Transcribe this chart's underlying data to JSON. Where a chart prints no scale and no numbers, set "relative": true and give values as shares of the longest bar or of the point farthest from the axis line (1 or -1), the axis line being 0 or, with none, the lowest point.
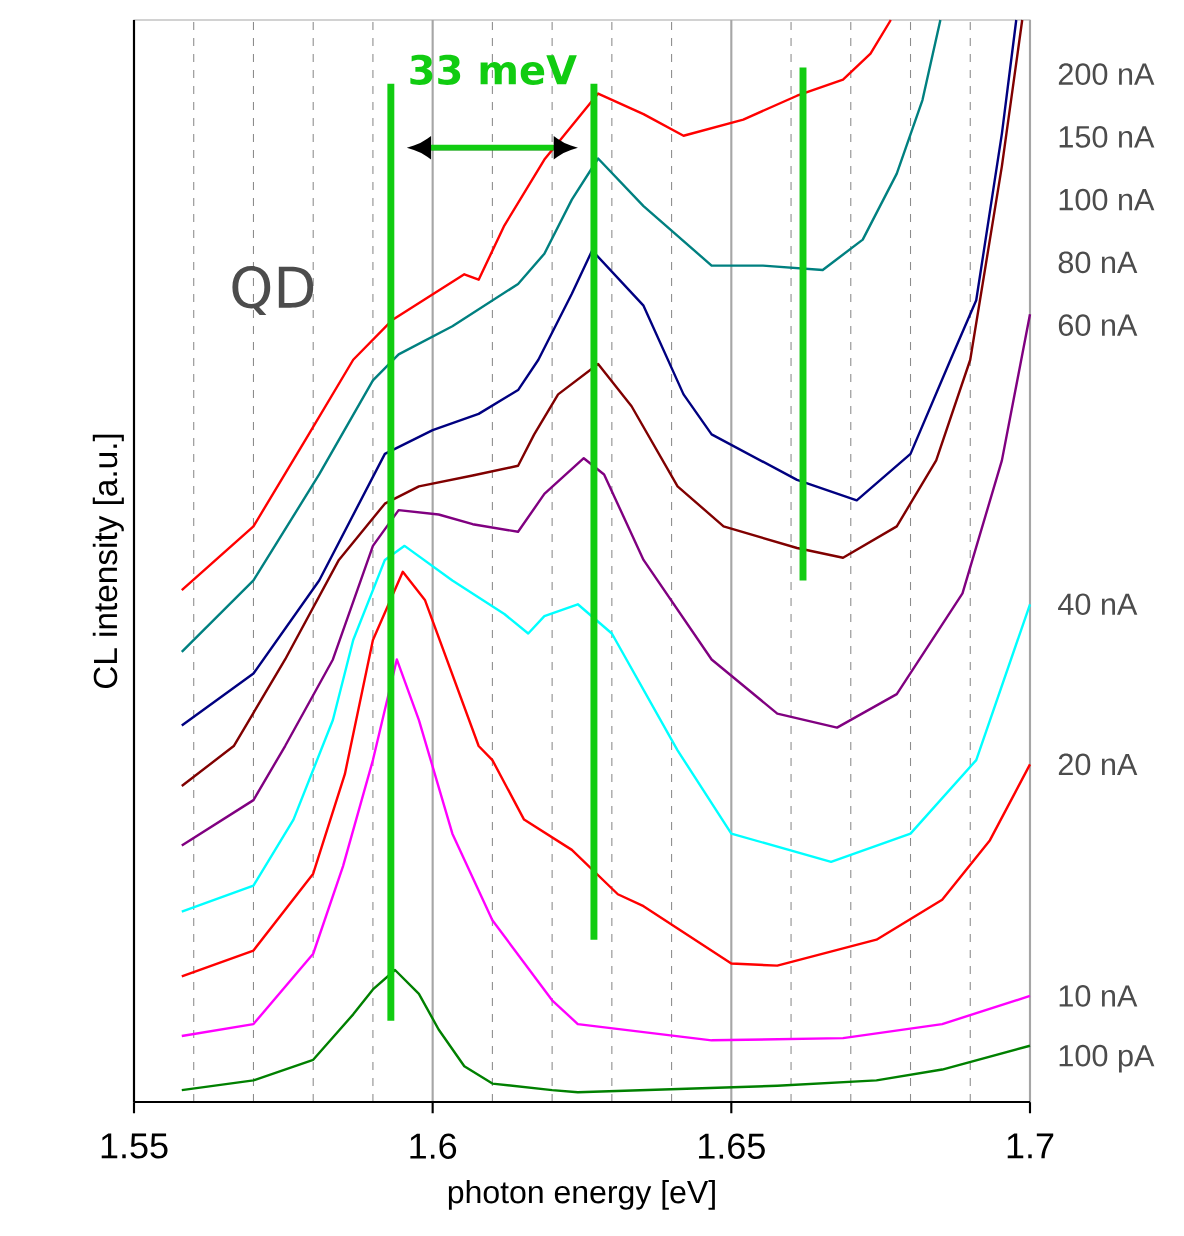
{
  "chart_data": {
    "type": "line",
    "relative": true,
    "xlabel": "photon energy [eV]",
    "ylabel": "CL intensity [a.u.]",
    "xlim": [
      1.55,
      1.7
    ],
    "xticks": [
      1.55,
      1.6,
      1.65,
      1.7
    ],
    "grid": "x",
    "tick_labels": "x",
    "annotations": [
      "QD",
      "33 meV"
    ],
    "series": [
      {
        "name": "200 nA",
        "color": "#ff0000",
        "x": [
          1.558,
          1.57,
          1.5787,
          1.5867,
          1.5933,
          1.6053,
          1.6077,
          1.612,
          1.6187,
          1.6277,
          1.6353,
          1.642,
          1.652,
          1.661,
          1.6687,
          1.6733,
          1.6767
        ],
        "values": [
          0.473,
          0.532,
          0.612,
          0.686,
          0.723,
          0.765,
          0.76,
          0.81,
          0.871,
          0.932,
          0.913,
          0.893,
          0.908,
          0.93,
          0.945,
          0.969,
          1.0
        ]
      },
      {
        "name": "150 nA",
        "color": "#008080",
        "x": [
          1.558,
          1.57,
          1.581,
          1.59,
          1.5943,
          1.6033,
          1.6143,
          1.6187,
          1.6233,
          1.6277,
          1.6353,
          1.6467,
          1.6553,
          1.6653,
          1.672,
          1.6777,
          1.682,
          1.685
        ],
        "values": [
          0.416,
          0.482,
          0.58,
          0.667,
          0.691,
          0.717,
          0.756,
          0.784,
          0.834,
          0.872,
          0.828,
          0.773,
          0.773,
          0.769,
          0.797,
          0.858,
          0.926,
          1.0
        ]
      },
      {
        "name": "100 nA",
        "color": "#000080",
        "x": [
          1.558,
          1.57,
          1.581,
          1.592,
          1.6,
          1.6077,
          1.6143,
          1.6177,
          1.6233,
          1.6267,
          1.6353,
          1.642,
          1.6467,
          1.661,
          1.671,
          1.68,
          1.6867,
          1.691,
          1.6953,
          1.6977
        ],
        "values": [
          0.348,
          0.396,
          0.482,
          0.599,
          0.621,
          0.636,
          0.658,
          0.686,
          0.747,
          0.787,
          0.736,
          0.654,
          0.617,
          0.575,
          0.556,
          0.599,
          0.686,
          0.741,
          0.895,
          1.0
        ]
      },
      {
        "name": "80 nA",
        "color": "#800000",
        "x": [
          1.558,
          1.5667,
          1.5753,
          1.5843,
          1.592,
          1.5977,
          1.6067,
          1.6143,
          1.617,
          1.621,
          1.6277,
          1.6333,
          1.641,
          1.6487,
          1.661,
          1.6687,
          1.6777,
          1.6843,
          1.69,
          1.6953,
          1.6987
        ],
        "values": [
          0.292,
          0.329,
          0.409,
          0.501,
          0.553,
          0.569,
          0.579,
          0.588,
          0.617,
          0.654,
          0.682,
          0.643,
          0.569,
          0.532,
          0.512,
          0.503,
          0.532,
          0.593,
          0.686,
          0.865,
          1.0
        ]
      },
      {
        "name": "60 nA",
        "color": "#800080",
        "x": [
          1.558,
          1.57,
          1.5753,
          1.5833,
          1.59,
          1.5943,
          1.601,
          1.6067,
          1.6143,
          1.6187,
          1.6253,
          1.6287,
          1.6353,
          1.6467,
          1.6577,
          1.6677,
          1.6777,
          1.6887,
          1.6953,
          1.7
        ],
        "values": [
          0.237,
          0.279,
          0.329,
          0.409,
          0.514,
          0.547,
          0.543,
          0.534,
          0.527,
          0.562,
          0.595,
          0.58,
          0.501,
          0.409,
          0.359,
          0.346,
          0.377,
          0.47,
          0.593,
          0.728
        ]
      },
      {
        "name": "40 nA",
        "color": "#00ffff",
        "x": [
          1.558,
          1.57,
          1.5767,
          1.5833,
          1.5867,
          1.592,
          1.5953,
          1.6033,
          1.612,
          1.616,
          1.6187,
          1.6243,
          1.63,
          1.641,
          1.65,
          1.6667,
          1.68,
          1.691,
          1.7
        ],
        "values": [
          0.176,
          0.2,
          0.261,
          0.353,
          0.427,
          0.501,
          0.514,
          0.482,
          0.451,
          0.433,
          0.449,
          0.46,
          0.433,
          0.325,
          0.248,
          0.222,
          0.248,
          0.316,
          0.46
        ]
      },
      {
        "name": "20 nA",
        "color": "#ff0000",
        "x": [
          1.558,
          1.57,
          1.58,
          1.5853,
          1.59,
          1.595,
          1.5987,
          1.6077,
          1.61,
          1.6153,
          1.6233,
          1.631,
          1.6353,
          1.65,
          1.6577,
          1.6743,
          1.6853,
          1.6933,
          1.7
        ],
        "values": [
          0.116,
          0.14,
          0.211,
          0.303,
          0.427,
          0.49,
          0.464,
          0.329,
          0.316,
          0.261,
          0.233,
          0.192,
          0.181,
          0.128,
          0.126,
          0.15,
          0.187,
          0.242,
          0.312
        ]
      },
      {
        "name": "10 nA",
        "color": "#ff00ff",
        "x": [
          1.558,
          1.57,
          1.58,
          1.585,
          1.59,
          1.594,
          1.5977,
          1.6033,
          1.61,
          1.62,
          1.6243,
          1.6467,
          1.6687,
          1.6853,
          1.7
        ],
        "values": [
          0.061,
          0.072,
          0.137,
          0.218,
          0.316,
          0.409,
          0.353,
          0.248,
          0.168,
          0.094,
          0.072,
          0.057,
          0.059,
          0.072,
          0.098
        ]
      },
      {
        "name": "100 pA",
        "color": "#008000",
        "x": [
          1.558,
          1.57,
          1.58,
          1.5867,
          1.59,
          1.5937,
          1.5977,
          1.601,
          1.6053,
          1.61,
          1.62,
          1.6243,
          1.6577,
          1.6743,
          1.6853,
          1.7
        ],
        "values": [
          0.011,
          0.02,
          0.039,
          0.081,
          0.104,
          0.122,
          0.1,
          0.067,
          0.033,
          0.017,
          0.011,
          0.009,
          0.015,
          0.02,
          0.03,
          0.052
        ]
      },
      {
        "color": "#11cc11",
        "x": [
          1.593,
          1.593
        ],
        "values": [
          0.075,
          0.941
        ]
      },
      {
        "color": "#11cc11",
        "x": [
          1.627,
          1.627
        ],
        "values": [
          0.15,
          0.941
        ]
      },
      {
        "color": "#11cc11",
        "x": [
          1.662,
          1.662
        ],
        "values": [
          0.482,
          0.956
        ]
      }
    ]
  }
}
